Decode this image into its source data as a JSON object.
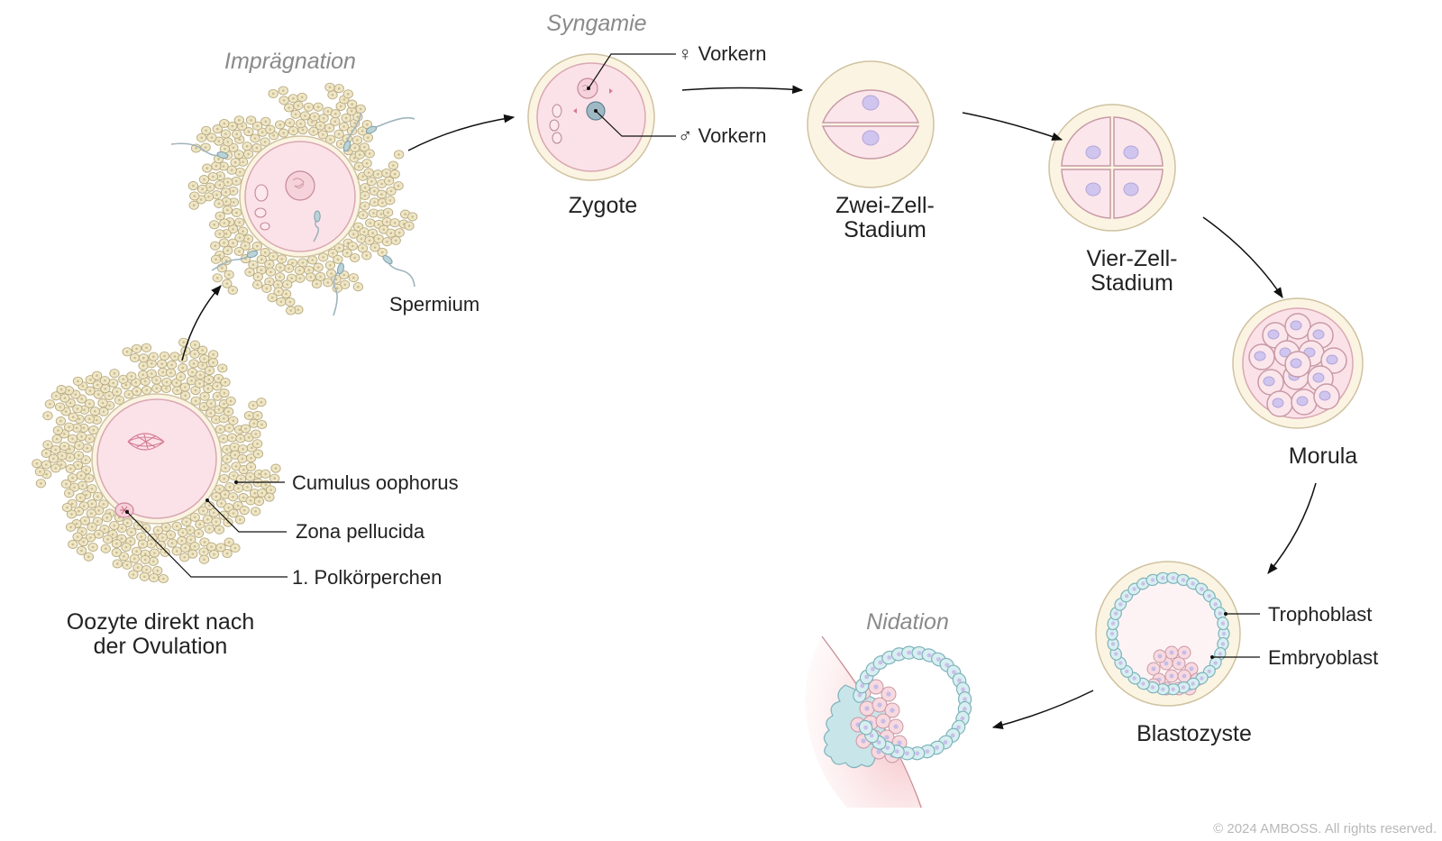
{
  "labels": {
    "impraegnation": "Imprägnation",
    "syngamie": "Syngamie",
    "nidation": "Nidation",
    "vorkern_female": "♀ Vorkern",
    "vorkern_male": "♂ Vorkern",
    "zygote": "Zygote",
    "zwei_zell_1": "Zwei-Zell-",
    "zwei_zell_2": "Stadium",
    "vier_zell_1": "Vier-Zell-",
    "vier_zell_2": "Stadium",
    "morula": "Morula",
    "blastozyste": "Blastozyste",
    "trophoblast": "Trophoblast",
    "embryoblast": "Embryoblast",
    "spermium": "Spermium",
    "cumulus": "Cumulus oophorus",
    "zona": "Zona pellucida",
    "polkoerperchen": "1. Polkörperchen",
    "oozyte_1": "Oozyte direkt nach",
    "oozyte_2": "der Ovulation",
    "copyright": "© 2024 AMBOSS. All rights reserved."
  },
  "colors": {
    "cumulus_cell": "#efe6c6",
    "zona": "#fbf4e2",
    "cytoplasm": "#fbe2e8",
    "nucleus": "#cfc5ee",
    "trophoblast": "#d8eff1",
    "embryoblast": "#f7d9df",
    "endometrium": "#f6c9cc"
  }
}
